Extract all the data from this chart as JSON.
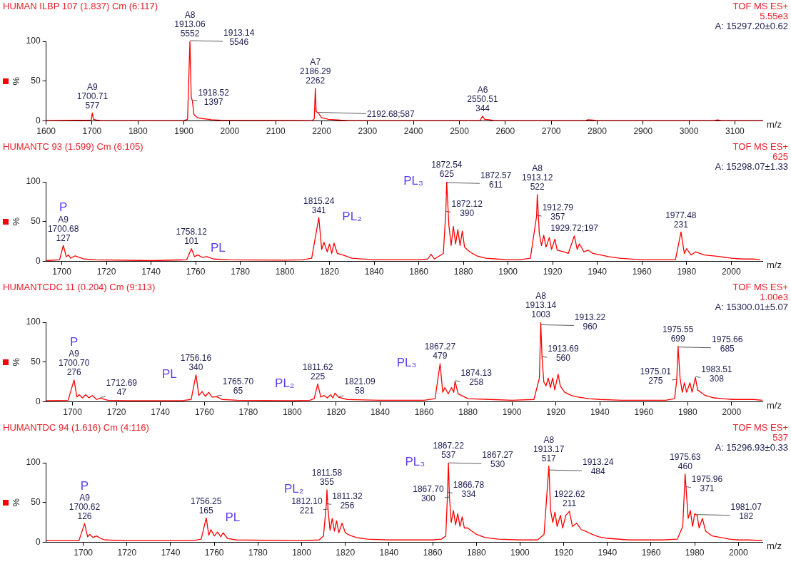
{
  "chart_data": [
    {
      "type": "line",
      "title": "HUMAN ILBP 107 (1.837) Cm (6:117)",
      "xlabel": "m/z",
      "ylabel": "%",
      "legend": false,
      "grid": false,
      "marker": "none",
      "line_style": "solid",
      "xlim": [
        1600,
        3160
      ],
      "xticks": [
        1600,
        1700,
        1800,
        1900,
        2000,
        2100,
        2200,
        2300,
        2400,
        2500,
        2600,
        2700,
        2800,
        2900,
        3000,
        3100
      ],
      "ylim": [
        0,
        100
      ],
      "yticks": [
        0,
        50,
        100
      ],
      "series": [
        {
          "color": "#ff0000",
          "x": [
            1600,
            1698,
            1700.7,
            1703,
            1710,
            1720,
            1900,
            1908,
            1913.1,
            1916,
            1918.5,
            1922,
            1930,
            1940,
            1960,
            1980,
            2180,
            2184,
            2186.3,
            2188,
            2192.7,
            2200,
            2215,
            2240,
            2260,
            2545,
            2550.5,
            2555,
            2565,
            2575,
            2775,
            2780,
            2790,
            2800,
            3055,
            3062,
            3070,
            3160
          ],
          "values": [
            0.5,
            1,
            10,
            2,
            1,
            0.5,
            0.5,
            2,
            100,
            30,
            25,
            8,
            4,
            3,
            1.5,
            0.8,
            0.5,
            3,
            41,
            12,
            10,
            4,
            2,
            1,
            0.5,
            0.5,
            6,
            2,
            1.5,
            0.5,
            0.5,
            1.5,
            1,
            0.5,
            0.5,
            1.2,
            0.5,
            0.5
          ]
        }
      ],
      "annotations": [
        "TOF MS ES+",
        "5.55e3",
        "A: 15297.20±0.62",
        {
          "text": "A9\n1700.71\n577",
          "x": 1700.71,
          "y": 10
        },
        {
          "text": "A8\n1913.06\n5552",
          "x": 1913.06,
          "y": 100
        },
        {
          "text": "1913.14\n5546",
          "x": 1913.14,
          "y": 100
        },
        {
          "text": "1918.52\n1397",
          "x": 1918.52,
          "y": 25
        },
        {
          "text": "A7\n2186.29\n2262",
          "x": 2186.29,
          "y": 41
        },
        {
          "text": "2192.68;587",
          "x": 2192.68,
          "y": 10
        },
        {
          "text": "A6\n2550.51\n344",
          "x": 2550.51,
          "y": 6
        }
      ]
    },
    {
      "type": "line",
      "title": "HUMANTC 93 (1.599) Cm (6:105)",
      "xlabel": "m/z",
      "ylabel": "%",
      "legend": false,
      "grid": false,
      "marker": "none",
      "line_style": "solid",
      "xlim": [
        1693,
        2014
      ],
      "xticks": [
        1700,
        1720,
        1740,
        1760,
        1780,
        1800,
        1820,
        1840,
        1860,
        1880,
        1900,
        1920,
        1940,
        1960,
        1980,
        2000
      ],
      "ylim": [
        0,
        100
      ],
      "yticks": [
        0,
        50,
        100
      ],
      "series": [
        {
          "color": "#ff0000",
          "x": [
            1693,
            1699,
            1700.7,
            1702,
            1703,
            1704,
            1706,
            1708,
            1710,
            1715,
            1740,
            1756,
            1758.1,
            1759.5,
            1761,
            1763,
            1765,
            1768,
            1775,
            1800,
            1808,
            1812,
            1815.2,
            1816.5,
            1817.5,
            1819,
            1820,
            1821,
            1822,
            1823.5,
            1826,
            1830,
            1840,
            1860,
            1864,
            1865.5,
            1867,
            1871,
            1872.1,
            1872.5,
            1873.5,
            1874.5,
            1875.5,
            1876.5,
            1877.5,
            1878.5,
            1879.5,
            1880.5,
            1882,
            1884,
            1886,
            1890,
            1895,
            1900,
            1905,
            1910,
            1912.8,
            1913.1,
            1914,
            1915,
            1916,
            1917,
            1918.5,
            1919.5,
            1921,
            1922,
            1925,
            1927,
            1929.7,
            1931,
            1932,
            1934,
            1936,
            1938,
            1940,
            1945,
            1950,
            1960,
            1970,
            1975,
            1977.5,
            1979,
            1980,
            1982,
            1984,
            1986,
            1988,
            1992,
            1995,
            2000,
            2005,
            2010,
            2013
          ],
          "values": [
            1,
            2,
            20,
            6,
            8,
            4,
            7,
            5,
            3,
            2,
            1,
            2,
            16,
            6,
            8,
            5,
            6,
            3,
            2,
            1.5,
            2,
            4,
            55,
            15,
            24,
            12,
            22,
            10,
            23,
            10,
            8,
            4,
            2,
            2,
            3,
            9,
            3,
            10,
            62,
            100,
            45,
            20,
            44,
            22,
            40,
            20,
            38,
            18,
            14,
            10,
            7,
            4,
            3,
            2,
            2,
            4,
            57,
            84,
            35,
            20,
            33,
            18,
            30,
            15,
            28,
            14,
            12,
            10,
            32,
            15,
            22,
            12,
            14,
            10,
            9,
            6,
            4,
            2,
            2,
            2,
            37,
            10,
            16,
            8,
            12,
            10,
            8,
            7,
            6,
            4,
            3,
            3,
            2
          ]
        }
      ],
      "annotations": [
        "TOF MS ES+",
        "625",
        "A: 15298.07±1.33",
        {
          "text": "A9\n1700.68\n127",
          "x": 1700.68,
          "y": 20
        },
        {
          "text": "1758.12\n101",
          "x": 1758.12,
          "y": 16
        },
        {
          "text": "1815.24\n341",
          "x": 1815.24,
          "y": 55
        },
        {
          "text": "1872.54\n625",
          "x": 1872.54,
          "y": 100
        },
        {
          "text": "1872.57\n611",
          "x": 1872.57,
          "y": 98
        },
        {
          "text": "1872.12\n390",
          "x": 1872.12,
          "y": 62
        },
        {
          "text": "1912.79\n357",
          "x": 1912.79,
          "y": 57
        },
        {
          "text": "A8\n1913.12\n522",
          "x": 1913.12,
          "y": 84
        },
        {
          "text": "1929.72;197",
          "x": 1929.72,
          "y": 32
        },
        {
          "text": "1977.48\n231",
          "x": 1977.48,
          "y": 37
        },
        {
          "text": "P",
          "x": 1700.68,
          "y": 20
        },
        {
          "text": "PL",
          "x": 1758.12,
          "y": 16
        },
        {
          "text": "PL₂",
          "x": 1815.24,
          "y": 55
        },
        {
          "text": "PL₃",
          "x": 1872.54,
          "y": 100
        }
      ]
    },
    {
      "type": "line",
      "title": "HUMANTCDC 11 (0.204) Cm (9:113)",
      "xlabel": "m/z",
      "ylabel": "%",
      "legend": false,
      "grid": false,
      "marker": "none",
      "line_style": "solid",
      "xlim": [
        1688,
        2014
      ],
      "xticks": [
        1700,
        1720,
        1740,
        1760,
        1780,
        1800,
        1820,
        1840,
        1860,
        1880,
        1900,
        1920,
        1940,
        1960,
        1980,
        2000
      ],
      "ylim": [
        0,
        100
      ],
      "yticks": [
        0,
        50,
        100
      ],
      "series": [
        {
          "color": "#ff0000",
          "x": [
            1688,
            1698,
            1700.7,
            1702,
            1703,
            1704.5,
            1706,
            1707.5,
            1709,
            1711,
            1712.7,
            1716,
            1725,
            1750,
            1754,
            1756.2,
            1757.5,
            1759,
            1760.5,
            1762,
            1763.5,
            1765.7,
            1768,
            1775,
            1800,
            1808,
            1810,
            1811.6,
            1813,
            1814.5,
            1816,
            1817.5,
            1818.5,
            1819.5,
            1821.1,
            1825,
            1840,
            1860,
            1865,
            1867.3,
            1868.5,
            1869.5,
            1871,
            1872.5,
            1873.5,
            1874.1,
            1875.5,
            1877,
            1880,
            1890,
            1900,
            1910,
            1912.5,
            1913.1,
            1913.7,
            1914.5,
            1915.5,
            1916.5,
            1917.5,
            1918.5,
            1919.5,
            1921,
            1922,
            1924,
            1927,
            1930,
            1935,
            1940,
            1950,
            1970,
            1974,
            1975,
            1975.6,
            1976.5,
            1977.5,
            1978.5,
            1979.5,
            1981,
            1982,
            1983.5,
            1984.5,
            1986,
            1988,
            1992,
            1996,
            2000,
            2005,
            2010,
            2014
          ],
          "values": [
            1.5,
            2,
            27.5,
            6,
            9,
            5,
            9,
            5,
            8,
            3,
            4.7,
            2,
            1.5,
            1.5,
            3,
            34,
            8,
            13,
            7,
            12,
            6,
            6.5,
            3,
            2,
            1.5,
            2,
            4,
            22.4,
            6,
            8,
            5,
            9,
            5,
            11,
            5.8,
            3,
            2,
            2,
            4,
            48,
            12,
            18,
            10,
            18,
            12,
            25.7,
            10,
            8,
            4,
            3,
            2,
            3,
            30,
            100,
            56,
            25,
            20,
            30,
            18,
            30,
            15,
            35,
            20,
            12,
            8,
            6,
            4,
            3,
            2,
            2,
            4,
            27.4,
            70,
            30,
            12,
            24,
            12,
            24,
            12,
            30.7,
            15,
            12,
            8,
            5,
            4,
            3,
            3,
            3,
            2
          ]
        }
      ],
      "annotations": [
        "TOF MS ES+",
        "1.00e3",
        "A: 15300.01±5.07",
        {
          "text": "A9\n1700.70\n276",
          "x": 1700.7,
          "y": 27.5
        },
        {
          "text": "1712.69\n47",
          "x": 1712.69,
          "y": 4.7
        },
        {
          "text": "1756.16\n340",
          "x": 1756.16,
          "y": 34
        },
        {
          "text": "1765.70\n65",
          "x": 1765.7,
          "y": 6.5
        },
        {
          "text": "1811.62\n225",
          "x": 1811.62,
          "y": 22.4
        },
        {
          "text": "1821.09\n58",
          "x": 1821.09,
          "y": 5.8
        },
        {
          "text": "1867.27\n479",
          "x": 1867.27,
          "y": 48
        },
        {
          "text": "1874.13\n258",
          "x": 1874.13,
          "y": 25.7
        },
        {
          "text": "A8\n1913.14\n1003",
          "x": 1913.14,
          "y": 100
        },
        {
          "text": "1913.22\n960",
          "x": 1913.22,
          "y": 96
        },
        {
          "text": "1913.69\n560",
          "x": 1913.69,
          "y": 56
        },
        {
          "text": "1975.55\n699",
          "x": 1975.55,
          "y": 70
        },
        {
          "text": "1975.66\n685",
          "x": 1975.66,
          "y": 68
        },
        {
          "text": "1975.01\n275",
          "x": 1975.01,
          "y": 27.4
        },
        {
          "text": "1983.51\n308",
          "x": 1983.51,
          "y": 30.7
        },
        {
          "text": "P",
          "x": 1700.7,
          "y": 27.5
        },
        {
          "text": "PL",
          "x": 1756.16,
          "y": 34
        },
        {
          "text": "PL₂",
          "x": 1811.62,
          "y": 22.4
        },
        {
          "text": "PL₃",
          "x": 1867.27,
          "y": 48
        }
      ]
    },
    {
      "type": "line",
      "title": "HUMANTDC 94 (1.616) Cm (4:116)",
      "xlabel": "m/z",
      "ylabel": "%",
      "legend": false,
      "grid": false,
      "marker": "none",
      "line_style": "solid",
      "xlim": [
        1683,
        2011
      ],
      "xticks": [
        1700,
        1720,
        1740,
        1760,
        1780,
        1800,
        1820,
        1840,
        1860,
        1880,
        1900,
        1920,
        1940,
        1960,
        1980,
        2000
      ],
      "ylim": [
        0,
        100
      ],
      "yticks": [
        0,
        50,
        100
      ],
      "series": [
        {
          "color": "#ff0000",
          "x": [
            1683,
            1698,
            1700.6,
            1702,
            1703,
            1704.5,
            1706,
            1708,
            1710,
            1720,
            1750,
            1754,
            1756.3,
            1757.5,
            1758.5,
            1760,
            1761.5,
            1763,
            1764,
            1766,
            1770,
            1800,
            1808,
            1810,
            1811.3,
            1811.6,
            1812.1,
            1813,
            1814,
            1815,
            1816,
            1817,
            1818.5,
            1820,
            1822,
            1825,
            1830,
            1840,
            1860,
            1864,
            1866,
            1866.8,
            1867.2,
            1867.7,
            1868.5,
            1869.5,
            1870.5,
            1871.5,
            1872.5,
            1873.5,
            1874.5,
            1876,
            1878,
            1880,
            1884,
            1890,
            1900,
            1908,
            1911,
            1913.2,
            1914,
            1915,
            1916,
            1917,
            1918.5,
            1919.5,
            1921,
            1922.6,
            1924,
            1926,
            1928,
            1930,
            1933,
            1936,
            1940,
            1950,
            1965,
            1972,
            1974.5,
            1975.6,
            1976,
            1977,
            1978,
            1979,
            1980,
            1981.1,
            1982,
            1983.5,
            1985,
            1988,
            1992,
            1996,
            2000,
            2005,
            2011
          ],
          "values": [
            2,
            2,
            23.5,
            7,
            10,
            6,
            8,
            5,
            3,
            2,
            2,
            4,
            30.7,
            9,
            16,
            8,
            13,
            7,
            12,
            5,
            3,
            2,
            3,
            8,
            47.7,
            66,
            41,
            15,
            30,
            14,
            27,
            12,
            24,
            12,
            9,
            6,
            4,
            3,
            3,
            4,
            8,
            62,
            100,
            56,
            25,
            40,
            22,
            36,
            20,
            32,
            18,
            18,
            14,
            10,
            6,
            4,
            3,
            3,
            10,
            96,
            40,
            25,
            38,
            20,
            34,
            18,
            34,
            39,
            20,
            24,
            16,
            14,
            10,
            7,
            5,
            3,
            3,
            4,
            20,
            86,
            69,
            30,
            40,
            20,
            36,
            34,
            18,
            30,
            14,
            8,
            6,
            4,
            3,
            3,
            2
          ]
        }
      ],
      "annotations": [
        "TOF MS ES+",
        "537",
        "A: 15296.93±0.33",
        {
          "text": "A9\n1700.62\n126",
          "x": 1700.62,
          "y": 23.5
        },
        {
          "text": "1756.25\n165",
          "x": 1756.25,
          "y": 30.7
        },
        {
          "text": "1811.58\n355",
          "x": 1811.58,
          "y": 66
        },
        {
          "text": "1811.32\n256",
          "x": 1811.32,
          "y": 47.7
        },
        {
          "text": "1812.10\n221",
          "x": 1812.1,
          "y": 41
        },
        {
          "text": "1867.22\n537",
          "x": 1867.22,
          "y": 100
        },
        {
          "text": "1867.27\n530",
          "x": 1867.27,
          "y": 99
        },
        {
          "text": "1866.78\n334",
          "x": 1866.78,
          "y": 62
        },
        {
          "text": "1867.70\n300",
          "x": 1867.7,
          "y": 56
        },
        {
          "text": "A8\n1913.17\n517",
          "x": 1913.17,
          "y": 96
        },
        {
          "text": "1913.24\n484",
          "x": 1913.24,
          "y": 90
        },
        {
          "text": "1922.62\n211",
          "x": 1922.62,
          "y": 39
        },
        {
          "text": "1975.63\n460",
          "x": 1975.63,
          "y": 86
        },
        {
          "text": "1975.96\n371",
          "x": 1975.96,
          "y": 69
        },
        {
          "text": "1981.07\n182",
          "x": 1981.07,
          "y": 34
        },
        {
          "text": "P",
          "x": 1700.62,
          "y": 23.5
        },
        {
          "text": "PL",
          "x": 1756.25,
          "y": 30.7
        },
        {
          "text": "PL₂",
          "x": 1811.58,
          "y": 66
        },
        {
          "text": "PL₃",
          "x": 1867.22,
          "y": 100
        }
      ]
    }
  ]
}
